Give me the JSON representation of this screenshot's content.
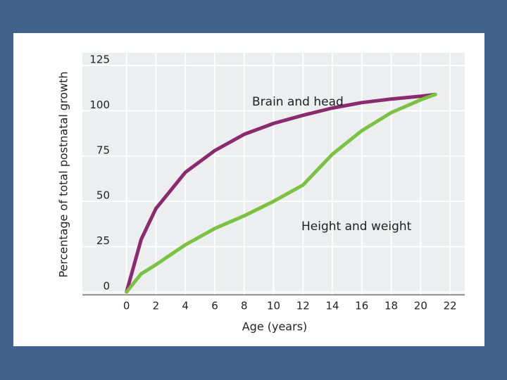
{
  "chart_data": {
    "type": "line",
    "x_label": "Age (years)",
    "y_label": "Percentage of total postnatal growth",
    "xlim": [
      -3,
      23
    ],
    "ylim": [
      -2,
      132
    ],
    "xticks": [
      0,
      2,
      4,
      6,
      8,
      10,
      12,
      14,
      16,
      18,
      20,
      22
    ],
    "yticks": [
      0,
      25,
      50,
      75,
      100,
      125
    ],
    "grid": true,
    "annotations": [
      {
        "text": "Brain and head"
      },
      {
        "text": "Height and weight"
      }
    ],
    "series": [
      {
        "name": "Brain and head",
        "color": "#8a2b6f",
        "x": [
          0,
          1,
          2,
          4,
          6,
          8,
          10,
          12,
          14,
          16,
          18,
          20,
          21
        ],
        "values": [
          0,
          29,
          46,
          66,
          78,
          87,
          93,
          97.5,
          101.5,
          104.5,
          106.5,
          108,
          109
        ]
      },
      {
        "name": "Height and weight",
        "color": "#7cc242",
        "x": [
          0,
          1,
          2,
          4,
          6,
          8,
          10,
          12,
          14,
          16,
          18,
          20,
          21
        ],
        "values": [
          0,
          10,
          15,
          26,
          35,
          42,
          50,
          59,
          76,
          89,
          99,
          106,
          109
        ]
      }
    ]
  }
}
